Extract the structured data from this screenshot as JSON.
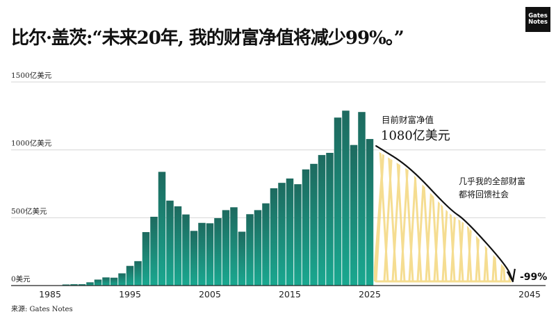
{
  "title": "比尔·盖茨:“未来20年, 我的财富净值将减少99%。”",
  "logo": {
    "line1": "Gates",
    "line2": "Notes"
  },
  "source": "来源: Gates Notes",
  "colors": {
    "bar_top": "#1d6a5f",
    "bar_bottom": "#1aa890",
    "scribble": "#f3d77e",
    "grid": "#d6d6d6",
    "curve": "#111111"
  },
  "chart_data": {
    "type": "bar",
    "title": "比尔·盖茨:“未来20年, 我的财富净值将减少99%。”",
    "ylim": [
      0,
      1500
    ],
    "xlim": [
      1985,
      2045
    ],
    "grid": true,
    "y_ticks": [
      {
        "value": 0,
        "label": "0美元"
      },
      {
        "value": 500,
        "label": "500亿美元"
      },
      {
        "value": 1000,
        "label": "1000亿美元"
      },
      {
        "value": 1500,
        "label": "1500亿美元"
      }
    ],
    "x_ticks": [
      {
        "value": 1985,
        "label": "1985"
      },
      {
        "value": 1995,
        "label": "1995"
      },
      {
        "value": 2005,
        "label": "2005"
      },
      {
        "value": 2015,
        "label": "2015"
      },
      {
        "value": 2025,
        "label": "2025"
      },
      {
        "value": 2045,
        "label": "2045"
      }
    ],
    "categories": [
      1987,
      1988,
      1989,
      1990,
      1991,
      1992,
      1993,
      1994,
      1995,
      1996,
      1997,
      1998,
      1999,
      2000,
      2001,
      2002,
      2003,
      2004,
      2005,
      2006,
      2007,
      2008,
      2009,
      2010,
      2011,
      2012,
      2013,
      2014,
      2015,
      2016,
      2017,
      2018,
      2019,
      2020,
      2021,
      2022,
      2023,
      2024,
      2025
    ],
    "values": [
      8,
      10,
      10,
      24,
      44,
      60,
      58,
      90,
      145,
      180,
      394,
      507,
      838,
      626,
      584,
      524,
      403,
      462,
      459,
      497,
      556,
      577,
      397,
      526,
      556,
      606,
      717,
      757,
      789,
      747,
      856,
      897,
      962,
      978,
      1238,
      1289,
      1036,
      1279,
      1080
    ],
    "projection": {
      "points": [
        [
          2025.8,
          1029
        ],
        [
          2030,
          876
        ],
        [
          2035,
          560
        ],
        [
          2037,
          483
        ],
        [
          2042.2,
          141
        ],
        [
          2042.9,
          31
        ]
      ],
      "end_label": "-99%"
    },
    "annotations": {
      "current_label": "目前财富净值",
      "current_value": "1080亿美元",
      "giveaway_line1": "几乎我的全部财富",
      "giveaway_line2": "都将回馈社会"
    }
  }
}
